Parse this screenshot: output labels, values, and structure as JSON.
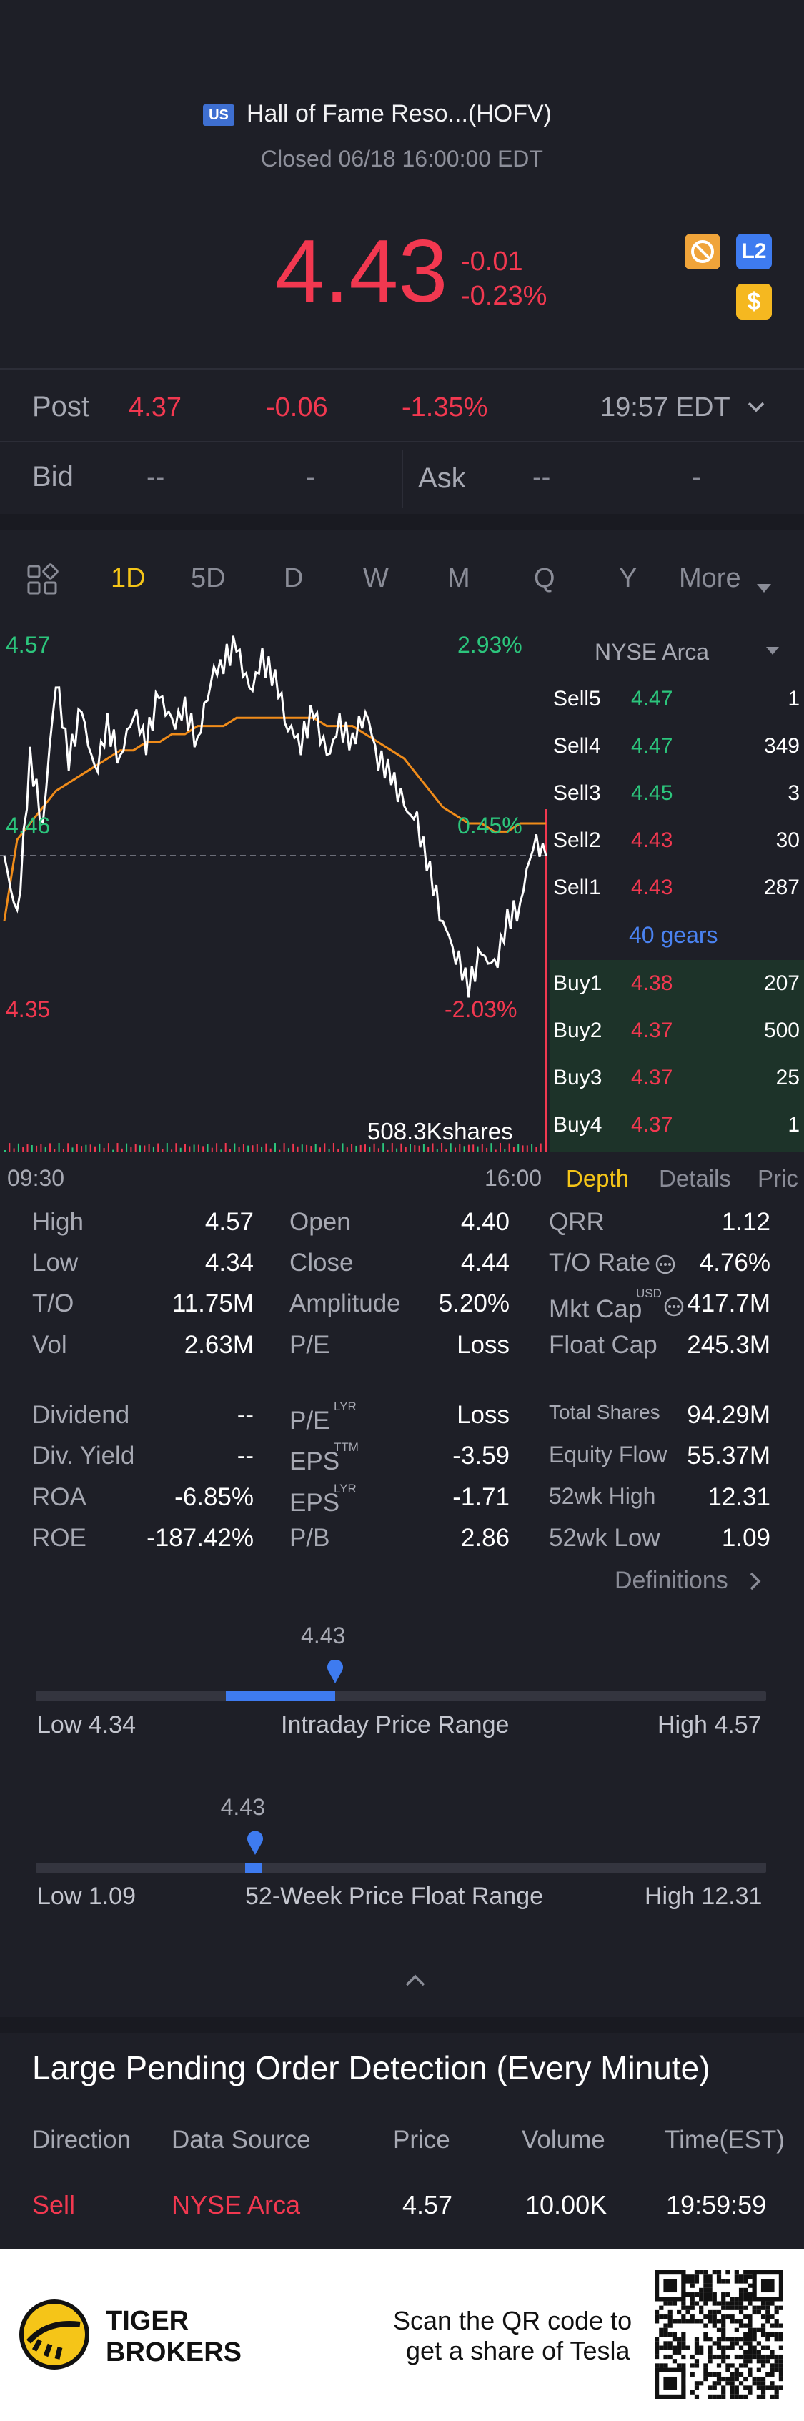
{
  "header": {
    "market_badge": "US",
    "title": "Hall of Fame Reso...(HOFV)",
    "status": "Closed 06/18 16:00:00 EDT",
    "price": "4.43",
    "change": "-0.01",
    "change_pct": "-0.23%",
    "badges": {
      "l2": "L2",
      "dollar": "$"
    }
  },
  "post": {
    "label": "Post",
    "price": "4.37",
    "change": "-0.06",
    "change_pct": "-1.35%",
    "time": "19:57 EDT"
  },
  "bidask": {
    "bid_label": "Bid",
    "bid_price": "--",
    "bid_size": "-",
    "ask_label": "Ask",
    "ask_price": "--",
    "ask_size": "-"
  },
  "tabs": [
    "1D",
    "5D",
    "D",
    "W",
    "M",
    "Q",
    "Y",
    "More"
  ],
  "chart": {
    "high_label": "4.57",
    "high_pct": "2.93%",
    "mid_label": "4.46",
    "mid_pct": "0.45%",
    "low_label": "4.35",
    "low_pct": "-2.03%",
    "volume_label": "508.3Kshares",
    "time_start": "09:30",
    "time_end": "16:00"
  },
  "chart_data": {
    "type": "line",
    "x_label_start": "09:30",
    "x_label_end": "16:00",
    "ylim": [
      4.35,
      4.57
    ],
    "series": [
      {
        "values": [
          4.44,
          4.4,
          4.5,
          4.46,
          4.55,
          4.5,
          4.53,
          4.49,
          4.52,
          4.5,
          4.53,
          4.51,
          4.54,
          4.52,
          4.53,
          4.51,
          4.55,
          4.56,
          4.57,
          4.54,
          4.56,
          4.55,
          4.52,
          4.51,
          4.53,
          4.5,
          4.52,
          4.51,
          4.53,
          4.5,
          4.49,
          4.47,
          4.46,
          4.43,
          4.4,
          4.38,
          4.36,
          4.38,
          4.37,
          4.4,
          4.41,
          4.45,
          4.44
        ]
      },
      {
        "values": [
          4.4,
          4.45,
          4.46,
          4.47,
          4.48,
          4.485,
          4.49,
          4.495,
          4.5,
          4.505,
          4.505,
          4.51,
          4.51,
          4.515,
          4.515,
          4.52,
          4.52,
          4.52,
          4.525,
          4.525,
          4.525,
          4.525,
          4.525,
          4.525,
          4.525,
          4.52,
          4.52,
          4.52,
          4.515,
          4.51,
          4.505,
          4.5,
          4.49,
          4.48,
          4.47,
          4.465,
          4.46,
          4.46,
          4.455,
          4.455,
          4.46,
          4.46,
          4.46
        ]
      }
    ]
  },
  "orderbook": {
    "exchange": "NYSE Arca",
    "sells": [
      {
        "label": "Sell5",
        "price": "4.47",
        "size": "1"
      },
      {
        "label": "Sell4",
        "price": "4.47",
        "size": "349"
      },
      {
        "label": "Sell3",
        "price": "4.45",
        "size": "3"
      },
      {
        "label": "Sell2",
        "price": "4.43",
        "size": "30"
      },
      {
        "label": "Sell1",
        "price": "4.43",
        "size": "287"
      }
    ],
    "gears": "40 gears",
    "buys": [
      {
        "label": "Buy1",
        "price": "4.38",
        "size": "207"
      },
      {
        "label": "Buy2",
        "price": "4.37",
        "size": "500"
      },
      {
        "label": "Buy3",
        "price": "4.37",
        "size": "25"
      },
      {
        "label": "Buy4",
        "price": "4.37",
        "size": "1"
      }
    ],
    "tabs": [
      "Depth",
      "Details",
      "Pric"
    ]
  },
  "stats": {
    "c1": [
      [
        "High",
        "4.57"
      ],
      [
        "Low",
        "4.34"
      ],
      [
        "T/O",
        "11.75M"
      ],
      [
        "Vol",
        "2.63M"
      ],
      [
        "Dividend",
        "--"
      ],
      [
        "Div. Yield",
        "--"
      ],
      [
        "ROA",
        "-6.85%"
      ],
      [
        "ROE",
        "-187.42%"
      ]
    ],
    "c2": [
      [
        "Open",
        "4.40"
      ],
      [
        "Close",
        "4.44"
      ],
      [
        "Amplitude",
        "5.20%"
      ],
      [
        "P/E",
        "Loss"
      ],
      [
        "P/E",
        "Loss"
      ],
      [
        "EPS",
        "-3.59"
      ],
      [
        "EPS",
        "-1.71"
      ],
      [
        "P/B",
        "2.86"
      ]
    ],
    "c2_sup": [
      "",
      "",
      "",
      "",
      "LYR",
      "TTM",
      "LYR",
      ""
    ],
    "c3": [
      [
        "QRR",
        "1.12"
      ],
      [
        "T/O Rate",
        "4.76%"
      ],
      [
        "Mkt Cap",
        "417.7M"
      ],
      [
        "Float Cap",
        "245.3M"
      ],
      [
        "Total Shares",
        "94.29M"
      ],
      [
        "Equity Flow",
        "55.37M"
      ],
      [
        "52wk High",
        "12.31"
      ],
      [
        "52wk Low",
        "1.09"
      ]
    ],
    "mktcap_sup": "USD",
    "definitions": "Definitions"
  },
  "intraday": {
    "value": "4.43",
    "low": "Low 4.34",
    "label": "Intraday Price Range",
    "high": "High 4.57",
    "position_fraction": 0.41
  },
  "week52": {
    "value": "4.43",
    "low": "Low 1.09",
    "label": "52-Week Price Float Range",
    "high": "High 12.31",
    "position_fraction": 0.3
  },
  "pending": {
    "title": "Large Pending Order Detection (Every Minute)",
    "headers": [
      "Direction",
      "Data Source",
      "Price",
      "Volume",
      "Time(EST)"
    ],
    "row": [
      "Sell",
      "NYSE Arca",
      "4.57",
      "10.00K",
      "19:59:59"
    ]
  },
  "footer": {
    "brand_line1": "TIGER",
    "brand_line2": "BROKERS",
    "promo_line1": "Scan the QR code to",
    "promo_line2": "get a share of Tesla"
  },
  "colors": {
    "red": "#f23850",
    "green": "#2cc57c",
    "accent": "#f5c518",
    "blue": "#3e7bf0",
    "bg": "#1e1f27"
  }
}
